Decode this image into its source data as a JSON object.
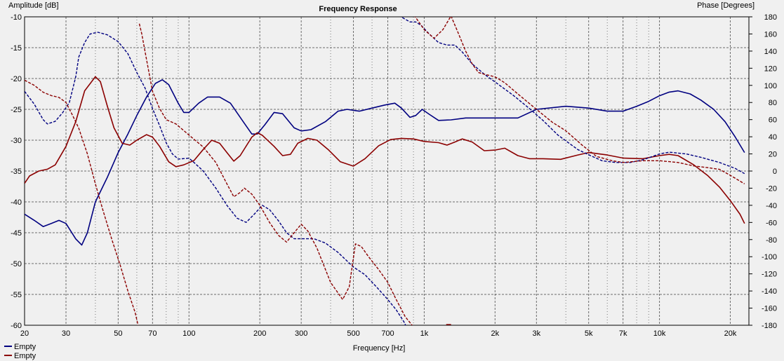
{
  "chart_data": {
    "type": "line",
    "title": "Frequency Response",
    "xlabel": "Frequency [Hz]",
    "ylabel_left": "Amplitude [dB]",
    "ylabel_right": "Phase [Degrees]",
    "x_scale": "log",
    "xlim": [
      20,
      24000
    ],
    "ylim_left": [
      -60,
      -10
    ],
    "ylim_right": [
      -180,
      180
    ],
    "grid": true,
    "legend_position": "bottom-left",
    "x_tick_labels": [
      {
        "f": 20,
        "label": "20"
      },
      {
        "f": 30,
        "label": "30"
      },
      {
        "f": 50,
        "label": "50"
      },
      {
        "f": 70,
        "label": "70"
      },
      {
        "f": 100,
        "label": "100"
      },
      {
        "f": 200,
        "label": "200"
      },
      {
        "f": 300,
        "label": "300"
      },
      {
        "f": 500,
        "label": "500"
      },
      {
        "f": 700,
        "label": "700"
      },
      {
        "f": 1000,
        "label": "1k"
      },
      {
        "f": 2000,
        "label": "2k"
      },
      {
        "f": 3000,
        "label": "3k"
      },
      {
        "f": 5000,
        "label": "5k"
      },
      {
        "f": 7000,
        "label": "7k"
      },
      {
        "f": 10000,
        "label": "10k"
      },
      {
        "f": 20000,
        "label": "20k"
      }
    ],
    "y_left_ticks": [
      -10,
      -15,
      -20,
      -25,
      -30,
      -35,
      -40,
      -45,
      -50,
      -55,
      -60
    ],
    "y_right_ticks": [
      180,
      160,
      140,
      120,
      100,
      80,
      60,
      40,
      20,
      0,
      -20,
      -40,
      -60,
      -80,
      -100,
      -120,
      -140,
      -160,
      -180
    ],
    "series": [
      {
        "name": "Empty",
        "color": "#000080",
        "kind": "amplitude",
        "style": "solid",
        "points": [
          [
            20,
            -42
          ],
          [
            22,
            -43
          ],
          [
            24,
            -44
          ],
          [
            26,
            -43.5
          ],
          [
            28,
            -43
          ],
          [
            30,
            -43.5
          ],
          [
            33,
            -46
          ],
          [
            35,
            -47
          ],
          [
            37,
            -45
          ],
          [
            40,
            -40
          ],
          [
            45,
            -36
          ],
          [
            50,
            -32
          ],
          [
            55,
            -29
          ],
          [
            60,
            -26
          ],
          [
            66,
            -23
          ],
          [
            72,
            -20.8
          ],
          [
            77,
            -20.2
          ],
          [
            82,
            -21
          ],
          [
            90,
            -24
          ],
          [
            95,
            -25.5
          ],
          [
            100,
            -25.5
          ],
          [
            110,
            -24
          ],
          [
            120,
            -23
          ],
          [
            135,
            -23
          ],
          [
            150,
            -24
          ],
          [
            170,
            -27
          ],
          [
            185,
            -29
          ],
          [
            195,
            -29
          ],
          [
            210,
            -27.5
          ],
          [
            230,
            -25.5
          ],
          [
            250,
            -25.7
          ],
          [
            280,
            -28
          ],
          [
            300,
            -28.5
          ],
          [
            330,
            -28.3
          ],
          [
            380,
            -27
          ],
          [
            430,
            -25.3
          ],
          [
            470,
            -25
          ],
          [
            530,
            -25.3
          ],
          [
            600,
            -24.8
          ],
          [
            680,
            -24.3
          ],
          [
            750,
            -24
          ],
          [
            800,
            -24.8
          ],
          [
            870,
            -26.3
          ],
          [
            920,
            -26
          ],
          [
            980,
            -25
          ],
          [
            1050,
            -25.8
          ],
          [
            1150,
            -26.8
          ],
          [
            1300,
            -26.7
          ],
          [
            1500,
            -26.4
          ],
          [
            2000,
            -26.4
          ],
          [
            2500,
            -26.4
          ],
          [
            3000,
            -25
          ],
          [
            4000,
            -24.5
          ],
          [
            5000,
            -24.8
          ],
          [
            6000,
            -25.3
          ],
          [
            7000,
            -25.3
          ],
          [
            8000,
            -24.5
          ],
          [
            9000,
            -23.7
          ],
          [
            10000,
            -22.8
          ],
          [
            11000,
            -22.2
          ],
          [
            12000,
            -22
          ],
          [
            13500,
            -22.5
          ],
          [
            15000,
            -23.5
          ],
          [
            17000,
            -25
          ],
          [
            19000,
            -27
          ],
          [
            21000,
            -29.5
          ],
          [
            23000,
            -32
          ]
        ]
      },
      {
        "name": "Empty",
        "color": "#8b0000",
        "kind": "amplitude",
        "style": "solid",
        "points": [
          [
            20,
            -37
          ],
          [
            21,
            -35.8
          ],
          [
            23,
            -35
          ],
          [
            25,
            -34.7
          ],
          [
            27,
            -34
          ],
          [
            30,
            -31
          ],
          [
            33,
            -27
          ],
          [
            36,
            -22
          ],
          [
            40,
            -19.7
          ],
          [
            42,
            -20.5
          ],
          [
            45,
            -24.5
          ],
          [
            48,
            -28
          ],
          [
            52,
            -30.5
          ],
          [
            56,
            -30.8
          ],
          [
            60,
            -30
          ],
          [
            66,
            -29.1
          ],
          [
            70,
            -29.5
          ],
          [
            75,
            -31
          ],
          [
            82,
            -33.5
          ],
          [
            88,
            -34.3
          ],
          [
            95,
            -34
          ],
          [
            105,
            -33.3
          ],
          [
            115,
            -31.5
          ],
          [
            125,
            -30
          ],
          [
            135,
            -30.5
          ],
          [
            145,
            -32
          ],
          [
            155,
            -33.4
          ],
          [
            165,
            -32.5
          ],
          [
            185,
            -29.5
          ],
          [
            195,
            -28.8
          ],
          [
            205,
            -29.2
          ],
          [
            230,
            -31
          ],
          [
            250,
            -32.5
          ],
          [
            270,
            -32.3
          ],
          [
            290,
            -30.5
          ],
          [
            320,
            -29.7
          ],
          [
            350,
            -30
          ],
          [
            390,
            -31.5
          ],
          [
            440,
            -33.5
          ],
          [
            500,
            -34.2
          ],
          [
            560,
            -33
          ],
          [
            640,
            -30.9
          ],
          [
            720,
            -29.9
          ],
          [
            800,
            -29.7
          ],
          [
            900,
            -29.8
          ],
          [
            1000,
            -30.2
          ],
          [
            1150,
            -30.4
          ],
          [
            1250,
            -30.8
          ],
          [
            1350,
            -30.3
          ],
          [
            1450,
            -29.8
          ],
          [
            1600,
            -30.3
          ],
          [
            1800,
            -31.7
          ],
          [
            2000,
            -31.6
          ],
          [
            2200,
            -31.3
          ],
          [
            2500,
            -32.5
          ],
          [
            2800,
            -33
          ],
          [
            3200,
            -33
          ],
          [
            3800,
            -33.1
          ],
          [
            4500,
            -32.4
          ],
          [
            5000,
            -32
          ],
          [
            6000,
            -32.4
          ],
          [
            7000,
            -32.9
          ],
          [
            8500,
            -33
          ],
          [
            10000,
            -32.5
          ],
          [
            11000,
            -32.3
          ],
          [
            12000,
            -32.5
          ],
          [
            14000,
            -34
          ],
          [
            16000,
            -35.7
          ],
          [
            18000,
            -37.6
          ],
          [
            20000,
            -39.8
          ],
          [
            22000,
            -42
          ],
          [
            23000,
            -43.5
          ]
        ]
      },
      {
        "name": "Empty",
        "color": "#000080",
        "kind": "phase",
        "style": "dashed",
        "points": [
          [
            20,
            93
          ],
          [
            22,
            78
          ],
          [
            24,
            60
          ],
          [
            25,
            55
          ],
          [
            27,
            58
          ],
          [
            29,
            68
          ],
          [
            31,
            80
          ],
          [
            33,
            110
          ],
          [
            34,
            133
          ],
          [
            36,
            150
          ],
          [
            38,
            160
          ],
          [
            41,
            162
          ],
          [
            45,
            159
          ],
          [
            50,
            151
          ],
          [
            55,
            137
          ],
          [
            60,
            115
          ],
          [
            65,
            97
          ],
          [
            70,
            73
          ],
          [
            75,
            53
          ],
          [
            80,
            33
          ],
          [
            85,
            20
          ],
          [
            90,
            14
          ],
          [
            100,
            15
          ],
          [
            105,
            10
          ],
          [
            115,
            0
          ],
          [
            130,
            -20
          ],
          [
            145,
            -40
          ],
          [
            160,
            -55
          ],
          [
            175,
            -60
          ],
          [
            190,
            -50
          ],
          [
            205,
            -40
          ],
          [
            220,
            -45
          ],
          [
            240,
            -58
          ],
          [
            260,
            -72
          ],
          [
            280,
            -79
          ],
          [
            300,
            -79
          ],
          [
            340,
            -79
          ],
          [
            380,
            -84
          ],
          [
            430,
            -95
          ],
          [
            500,
            -112
          ],
          [
            560,
            -121
          ],
          [
            630,
            -136
          ],
          [
            700,
            -150
          ],
          [
            760,
            -162
          ],
          [
            820,
            -176
          ],
          [
            840,
            -182
          ],
          [
            780,
            182
          ],
          [
            820,
            178
          ],
          [
            870,
            174
          ],
          [
            920,
            174
          ],
          [
            970,
            170
          ],
          [
            1050,
            160
          ],
          [
            1150,
            150
          ],
          [
            1250,
            147
          ],
          [
            1350,
            147
          ],
          [
            1450,
            139
          ],
          [
            1600,
            125
          ],
          [
            1800,
            113
          ],
          [
            2000,
            104
          ],
          [
            2400,
            88
          ],
          [
            2800,
            73
          ],
          [
            3200,
            59
          ],
          [
            3700,
            42
          ],
          [
            4500,
            25
          ],
          [
            5000,
            19
          ],
          [
            5700,
            12
          ],
          [
            6500,
            10
          ],
          [
            7500,
            10
          ],
          [
            8500,
            13
          ],
          [
            10000,
            20
          ],
          [
            11000,
            22
          ],
          [
            13000,
            20
          ],
          [
            15000,
            16
          ],
          [
            18000,
            10
          ],
          [
            21000,
            3
          ],
          [
            23000,
            -3
          ]
        ]
      },
      {
        "name": "Empty",
        "color": "#8b0000",
        "kind": "phase",
        "style": "dashed",
        "points": [
          [
            20,
            106
          ],
          [
            22,
            100
          ],
          [
            24,
            92
          ],
          [
            26,
            88
          ],
          [
            28,
            86
          ],
          [
            30,
            80
          ],
          [
            32,
            65
          ],
          [
            34,
            50
          ],
          [
            37,
            20
          ],
          [
            40,
            -15
          ],
          [
            43,
            -45
          ],
          [
            47,
            -80
          ],
          [
            51,
            -110
          ],
          [
            55,
            -140
          ],
          [
            59,
            -165
          ],
          [
            61,
            -182
          ],
          [
            61.5,
            172
          ],
          [
            63,
            160
          ],
          [
            66,
            130
          ],
          [
            70,
            93
          ],
          [
            75,
            73
          ],
          [
            80,
            60
          ],
          [
            88,
            55
          ],
          [
            100,
            42
          ],
          [
            115,
            28
          ],
          [
            130,
            10
          ],
          [
            145,
            -15
          ],
          [
            155,
            -30
          ],
          [
            165,
            -25
          ],
          [
            172,
            -20
          ],
          [
            185,
            -27
          ],
          [
            200,
            -40
          ],
          [
            220,
            -60
          ],
          [
            240,
            -75
          ],
          [
            260,
            -83
          ],
          [
            280,
            -72
          ],
          [
            300,
            -62
          ],
          [
            320,
            -70
          ],
          [
            350,
            -90
          ],
          [
            400,
            -130
          ],
          [
            450,
            -150
          ],
          [
            480,
            -135
          ],
          [
            510,
            -85
          ],
          [
            540,
            -88
          ],
          [
            580,
            -100
          ],
          [
            640,
            -115
          ],
          [
            700,
            -130
          ],
          [
            760,
            -150
          ],
          [
            830,
            -170
          ],
          [
            900,
            -182
          ],
          [
            905,
            182
          ],
          [
            1000,
            165
          ],
          [
            1100,
            155
          ],
          [
            1200,
            165
          ],
          [
            1300,
            181
          ],
          [
            1400,
            160
          ],
          [
            1500,
            140
          ],
          [
            1600,
            125
          ],
          [
            1700,
            115
          ],
          [
            1800,
            113
          ],
          [
            2000,
            110
          ],
          [
            2200,
            103
          ],
          [
            2500,
            90
          ],
          [
            3000,
            72
          ],
          [
            3500,
            57
          ],
          [
            4000,
            47
          ],
          [
            4700,
            30
          ],
          [
            5400,
            17
          ],
          [
            6300,
            12
          ],
          [
            7000,
            10
          ],
          [
            8500,
            12
          ],
          [
            10000,
            12
          ],
          [
            12000,
            10
          ],
          [
            14000,
            6
          ],
          [
            16000,
            4
          ],
          [
            18000,
            2
          ],
          [
            20000,
            -5
          ],
          [
            23000,
            -15
          ]
        ]
      }
    ]
  }
}
